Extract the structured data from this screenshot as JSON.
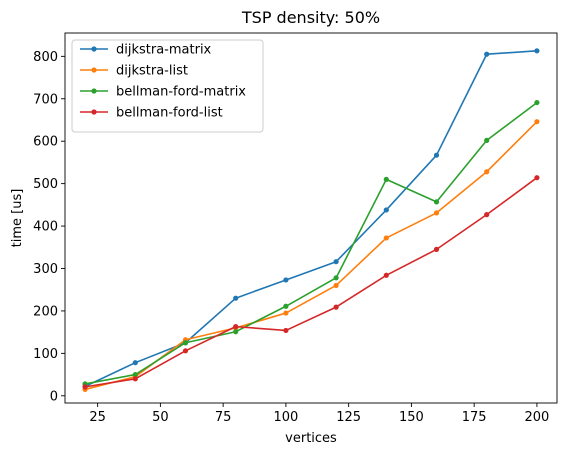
{
  "chart_data": {
    "type": "line",
    "title": "TSP density: 50%",
    "xlabel": "vertices",
    "ylabel": "time [us]",
    "xlim": [
      12,
      208
    ],
    "ylim": [
      -17,
      855
    ],
    "xticks": [
      25,
      50,
      75,
      100,
      125,
      150,
      175,
      200
    ],
    "yticks": [
      0,
      100,
      200,
      300,
      400,
      500,
      600,
      700,
      800
    ],
    "grid": false,
    "legend_position": "upper-left",
    "x": [
      20,
      40,
      60,
      80,
      100,
      120,
      140,
      160,
      180,
      200
    ],
    "series": [
      {
        "name": "dijkstra-matrix",
        "color": "#1f77b4",
        "values": [
          22,
          78,
          125,
          230,
          273,
          316,
          438,
          567,
          805,
          813
        ]
      },
      {
        "name": "dijkstra-list",
        "color": "#ff7f0e",
        "values": [
          15,
          45,
          132,
          160,
          195,
          260,
          372,
          431,
          528,
          646
        ]
      },
      {
        "name": "bellman-ford-matrix",
        "color": "#2ca02c",
        "values": [
          28,
          50,
          125,
          151,
          211,
          278,
          510,
          457,
          602,
          691
        ]
      },
      {
        "name": "bellman-ford-list",
        "color": "#d62728",
        "values": [
          21,
          40,
          106,
          163,
          154,
          209,
          284,
          345,
          427,
          514
        ]
      }
    ]
  }
}
